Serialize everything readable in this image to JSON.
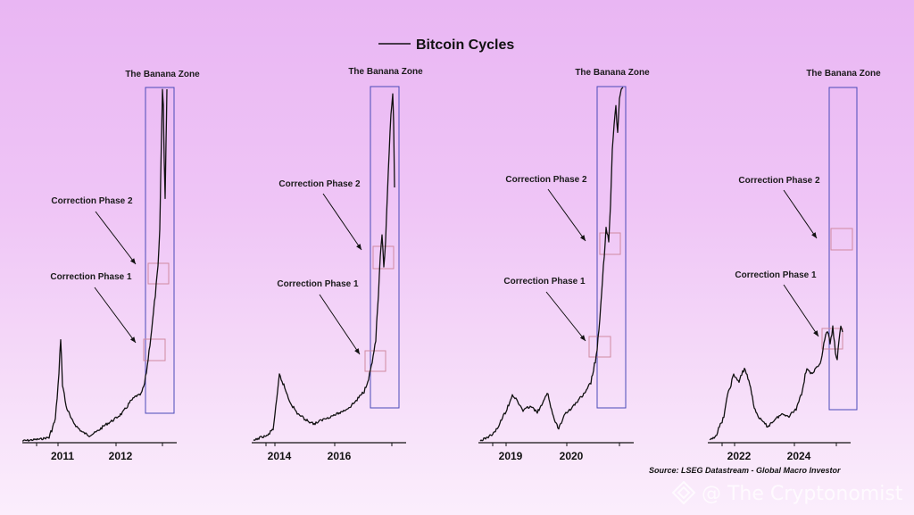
{
  "title": "Bitcoin Cycles",
  "source": "Source: LSEG Datastream - Global Macro Investor",
  "watermark": "@ The Cryptonomist",
  "colors": {
    "line": "#111111",
    "banana_box": "#4a4ab8",
    "correction_box": "#d08aa0",
    "annotation_text": "#1a1a1a"
  },
  "chart_data": [
    {
      "type": "line",
      "series": [
        {
          "name": "Bitcoin Cycles"
        }
      ],
      "x_ticks": [
        "2011",
        "2012"
      ],
      "annotations": [
        "The Banana Zone",
        "Correction Phase 2",
        "Correction Phase 1"
      ]
    },
    {
      "type": "line",
      "series": [
        {
          "name": "Bitcoin Cycles"
        }
      ],
      "x_ticks": [
        "2014",
        "2016"
      ],
      "annotations": [
        "The Banana Zone",
        "Correction Phase 2",
        "Correction Phase 1"
      ]
    },
    {
      "type": "line",
      "series": [
        {
          "name": "Bitcoin Cycles"
        }
      ],
      "x_ticks": [
        "2019",
        "2020"
      ],
      "annotations": [
        "The Banana Zone",
        "Correction Phase 2",
        "Correction Phase 1"
      ]
    },
    {
      "type": "line",
      "series": [
        {
          "name": "Bitcoin Cycles"
        }
      ],
      "x_ticks": [
        "2022",
        "2024"
      ],
      "annotations": [
        "The Banana Zone",
        "Correction Phase 2",
        "Correction Phase 1"
      ]
    }
  ]
}
